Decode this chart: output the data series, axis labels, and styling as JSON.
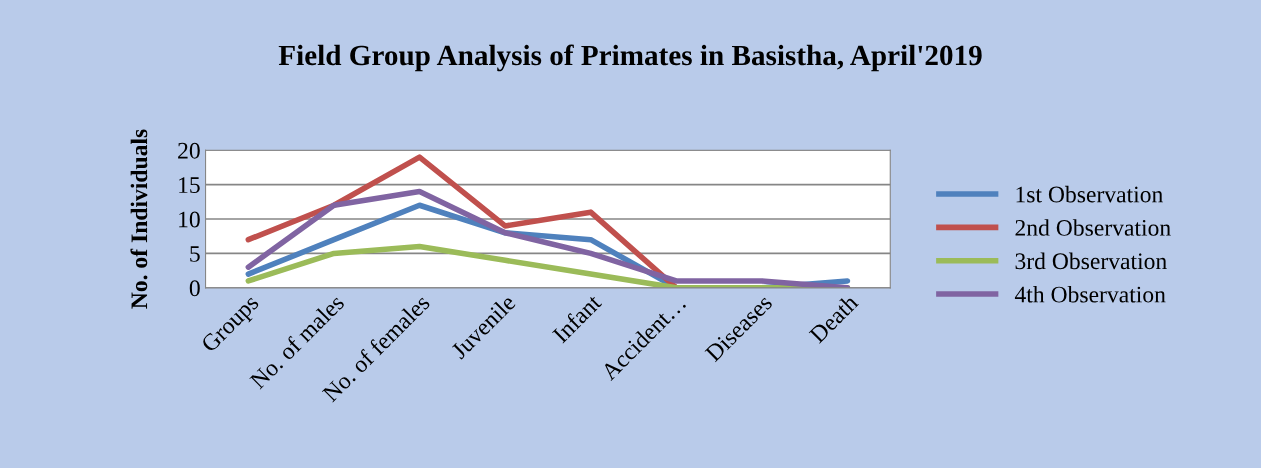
{
  "chart_data": {
    "type": "line",
    "title": "Field Group Analysis of Primates in Basistha, April'2019",
    "ylabel": "No. of Individuals",
    "categories": [
      "Groups",
      "No. of males",
      "No. of females",
      "Juvenile",
      "Infant",
      "Accident…",
      "Diseases",
      "Death"
    ],
    "series": [
      {
        "name": "1st Observation",
        "color": "#4f81bd",
        "values": [
          2,
          7,
          12,
          8,
          7,
          0,
          0,
          1
        ]
      },
      {
        "name": "2nd Observation",
        "color": "#c0504d",
        "values": [
          7,
          12,
          19,
          9,
          11,
          0,
          null,
          null
        ]
      },
      {
        "name": "3rd Observation",
        "color": "#9bbb59",
        "values": [
          1,
          5,
          6,
          4,
          2,
          0,
          0,
          0
        ]
      },
      {
        "name": "4th Observation",
        "color": "#8064a2",
        "values": [
          3,
          12,
          14,
          8,
          5,
          1,
          1,
          0
        ]
      }
    ],
    "ylim": [
      0,
      20
    ],
    "yticks": [
      0,
      5,
      10,
      15,
      20
    ],
    "grid": "y",
    "legend": "right",
    "marker": "none",
    "line_style": "solid"
  }
}
